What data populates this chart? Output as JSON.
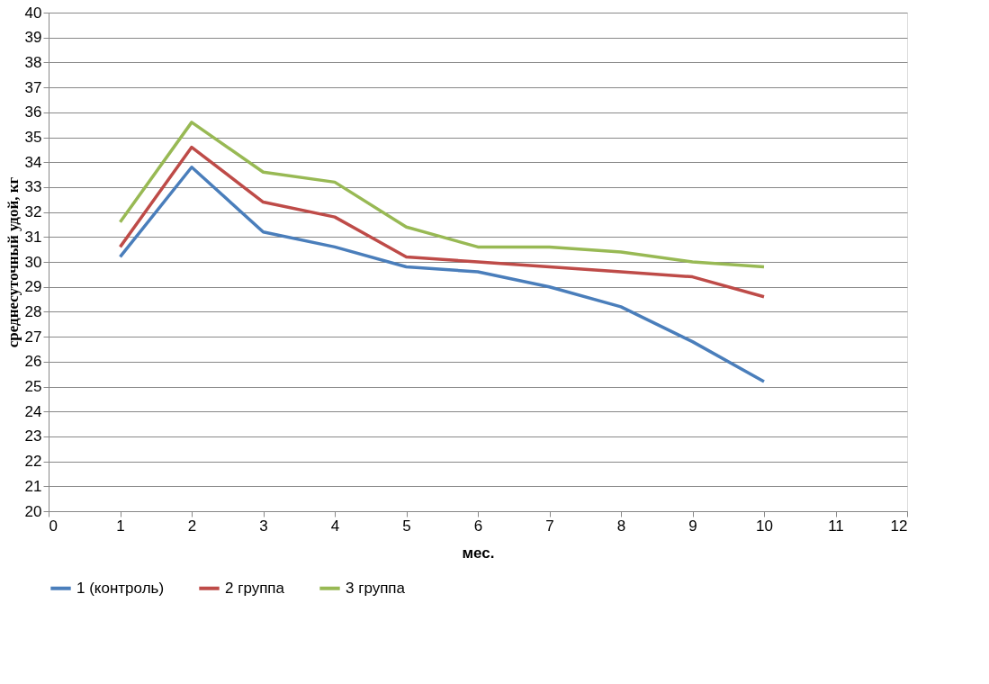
{
  "chart_data": {
    "type": "line",
    "xlabel": "мес.",
    "ylabel": "среднесуточный удой, кг",
    "x": [
      1,
      2,
      3,
      4,
      5,
      6,
      7,
      8,
      9,
      10
    ],
    "series": [
      {
        "name": "1 (контроль)",
        "color": "#4a7ebb",
        "values": [
          30.2,
          33.8,
          31.2,
          30.6,
          29.8,
          29.6,
          29.0,
          28.2,
          26.8,
          25.2
        ]
      },
      {
        "name": "2 группа",
        "color": "#be4b48",
        "values": [
          30.6,
          34.6,
          32.4,
          31.8,
          30.2,
          30.0,
          29.8,
          29.6,
          29.4,
          28.6
        ]
      },
      {
        "name": "3 группа",
        "color": "#98b954",
        "values": [
          31.6,
          35.6,
          33.6,
          33.2,
          31.4,
          30.6,
          30.6,
          30.4,
          30.0,
          29.8
        ]
      }
    ],
    "xlim": [
      0,
      12
    ],
    "xticks": [
      0,
      1,
      2,
      3,
      4,
      5,
      6,
      7,
      8,
      9,
      10,
      11,
      12
    ],
    "ylim": [
      20,
      40
    ],
    "yticks": [
      20,
      21,
      22,
      23,
      24,
      25,
      26,
      27,
      28,
      29,
      30,
      31,
      32,
      33,
      34,
      35,
      36,
      37,
      38,
      39,
      40
    ],
    "grid": "y",
    "legend": "bottom",
    "marker": "none",
    "line_style": "solid"
  }
}
